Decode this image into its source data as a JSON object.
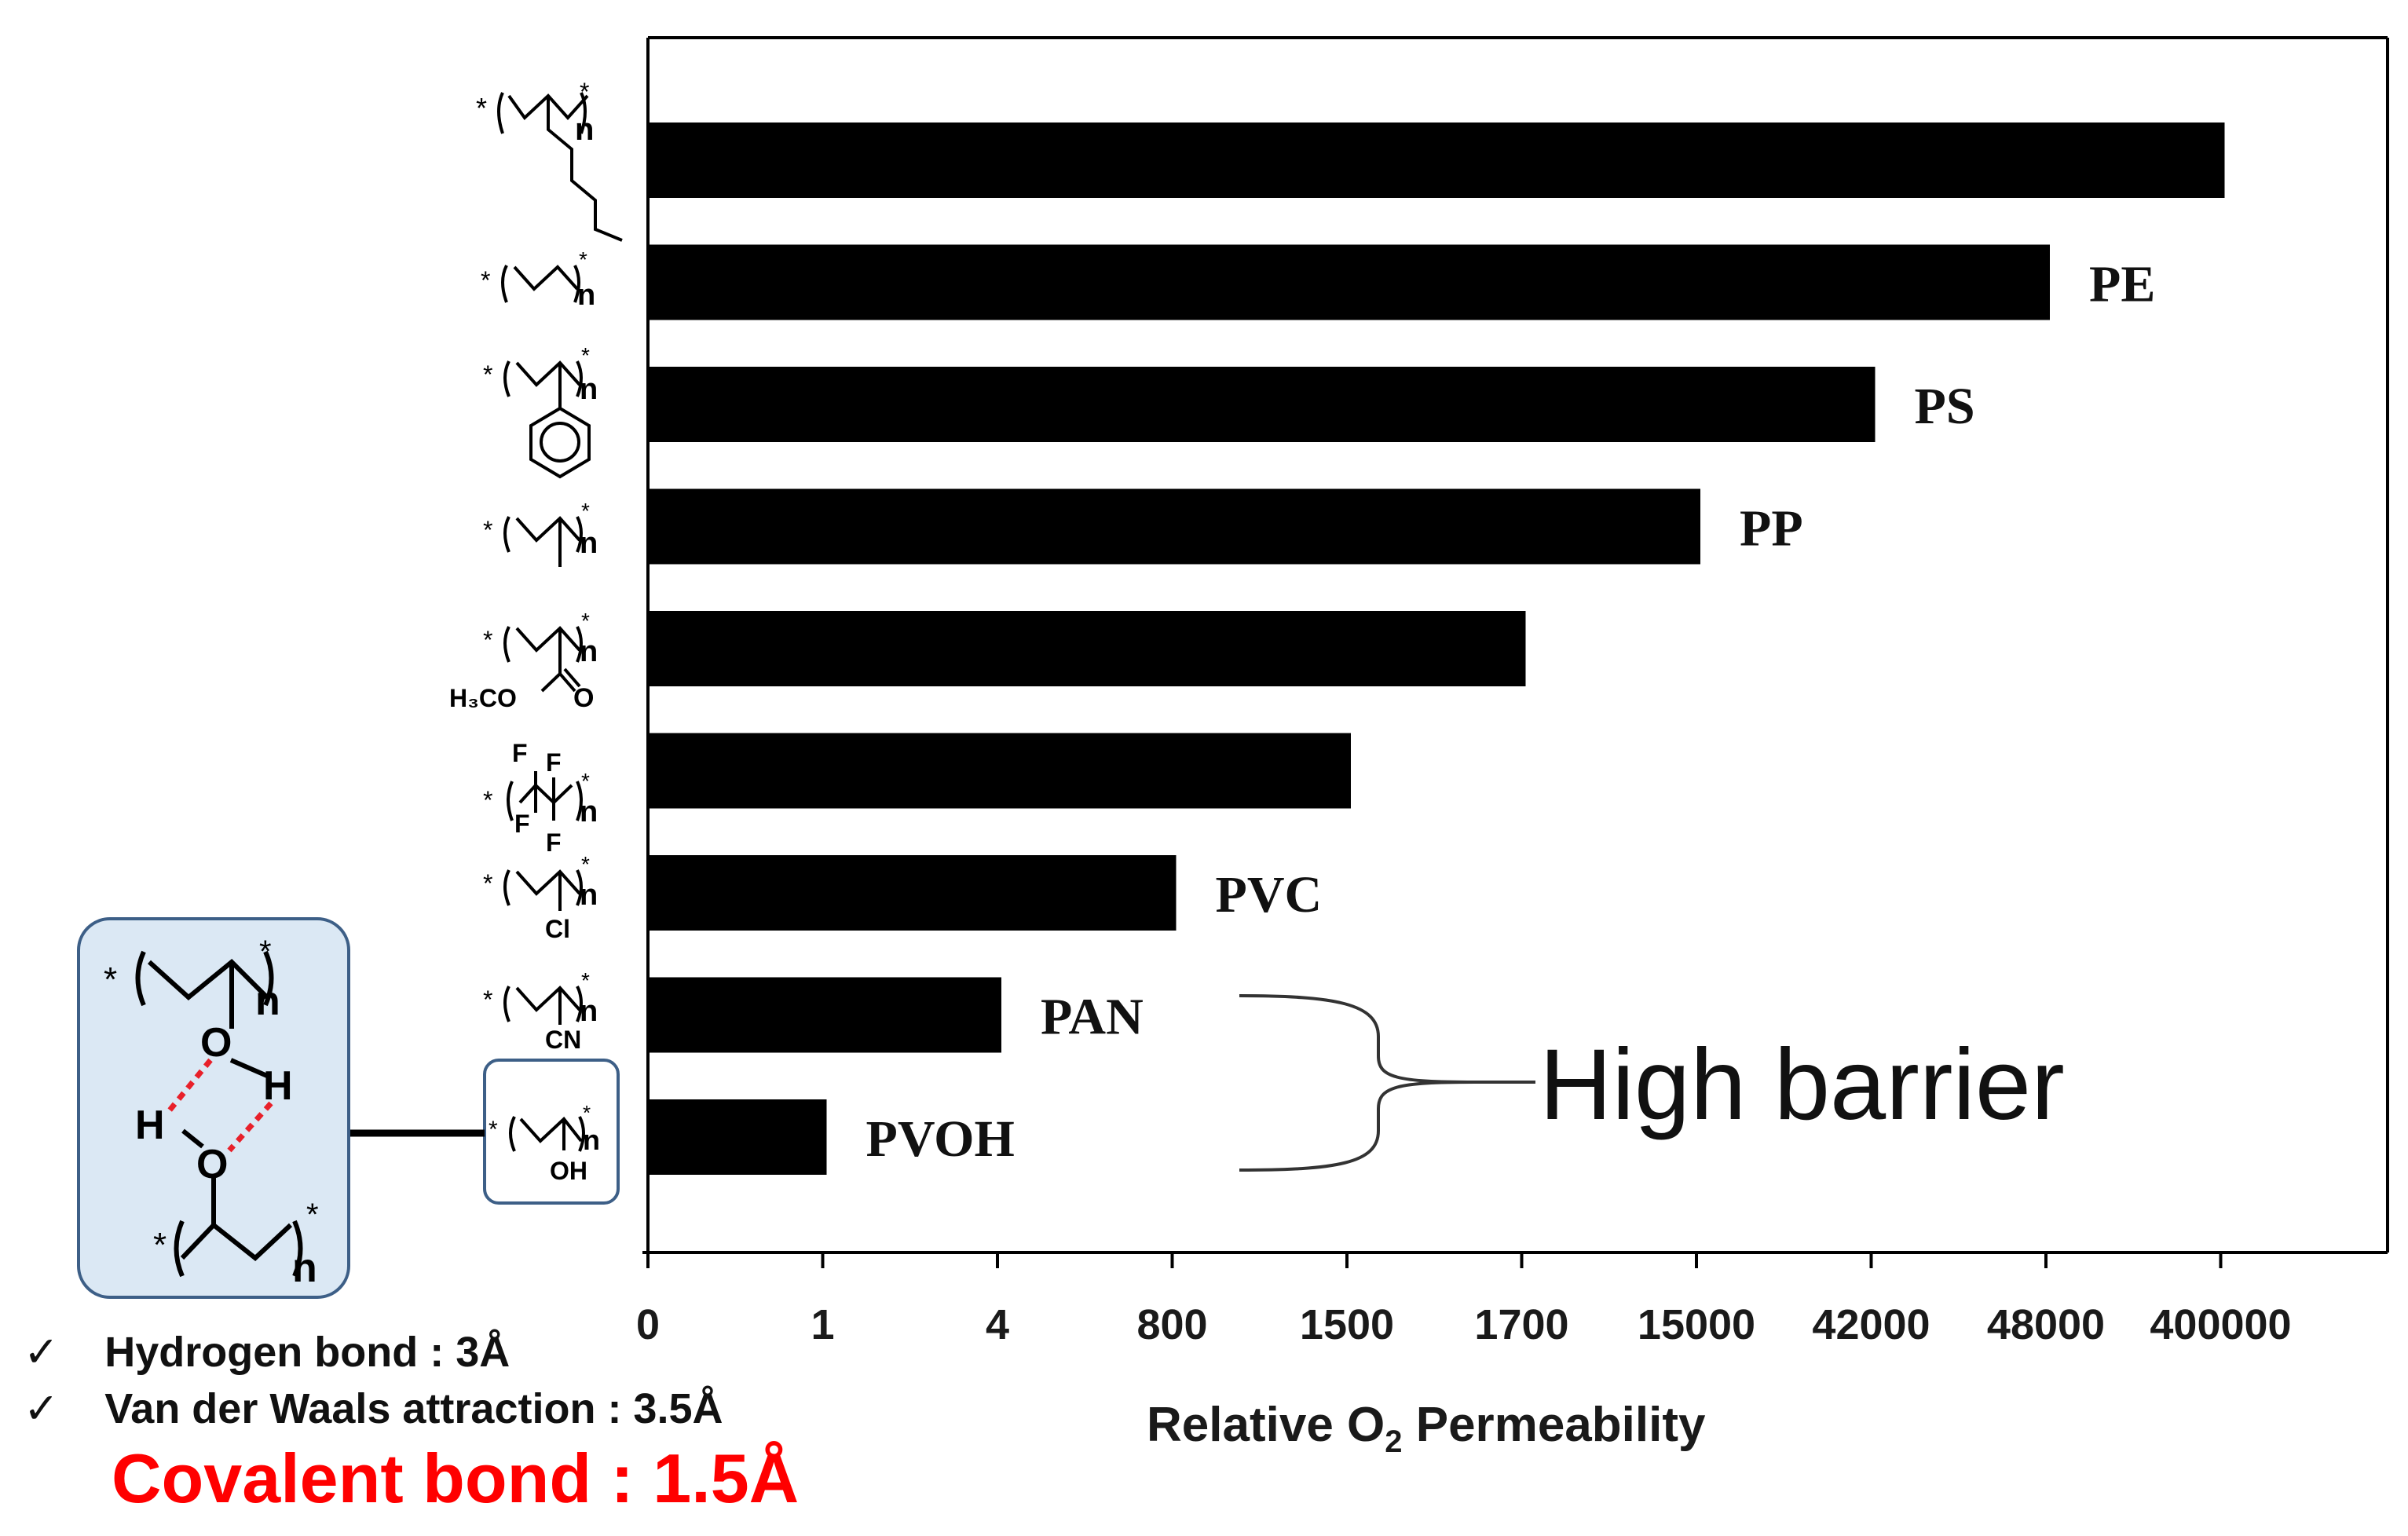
{
  "chart_data": {
    "type": "bar",
    "orientation": "horizontal",
    "xlabel_prefix": "Relative O",
    "xlabel_sub": "2",
    "xlabel_suffix": " Permeability",
    "x_ticks": [
      "0",
      "1",
      "4",
      "800",
      "1500",
      "1700",
      "15000",
      "42000",
      "48000",
      "400000"
    ],
    "categories": [
      "",
      "PE",
      "PS",
      "PP",
      "",
      "",
      "PVC",
      "PAN",
      "PVOH"
    ],
    "values": [
      400000,
      48000,
      42000,
      15000,
      1700,
      1500,
      800,
      4,
      1
    ],
    "bar_color": "#000000",
    "grid": false
  },
  "annotation": {
    "label": "High barrier"
  },
  "structures": {
    "labels": {
      "h3co": "H₃CO",
      "o": "O",
      "f": "F",
      "cl": "Cl",
      "cn": "CN",
      "oh": "OH",
      "h": "H",
      "n": "n",
      "star": "*"
    }
  },
  "notes": {
    "check": "✓",
    "hydrogen": "Hydrogen bond : 3Å",
    "vdw": "Van der Waals attraction : 3.5Å",
    "covalent": "Covalent bond : 1.5Å",
    "covalent_color": "#ff0000"
  }
}
